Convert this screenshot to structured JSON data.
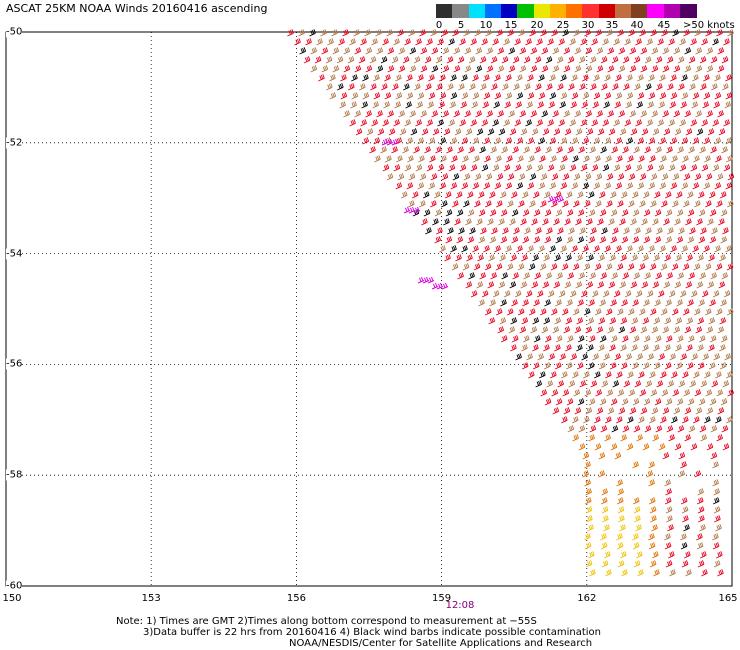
{
  "title": "ASCAT 25KM NOAA Winds 20160416 ascending",
  "legend": {
    "labels": [
      "0",
      "5",
      "10",
      "15",
      "20",
      "25",
      "30",
      "35",
      "40",
      "45",
      ">50 knots"
    ],
    "colors": [
      "#2e2e2e",
      "#888888",
      "#00e0ff",
      "#0070ff",
      "#0000c0",
      "#00c000",
      "#e8e800",
      "#ffb000",
      "#ff7000",
      "#ff3030",
      "#d00000",
      "#c07040",
      "#804020",
      "#ff00ff",
      "#b000b0",
      "#500060"
    ]
  },
  "map": {
    "lon_ticks": [
      "150",
      "153",
      "156",
      "159",
      "162",
      "165"
    ],
    "lon_values": [
      150,
      153,
      156,
      159,
      162,
      165
    ],
    "lat_ticks": [
      "-50",
      "-52",
      "-54",
      "-56",
      "-58",
      "-60"
    ],
    "lat_values": [
      -50,
      -52,
      -54,
      -56,
      -58,
      -60
    ],
    "time_label": "12:08",
    "barb_colors": {
      "red": "#e8001c",
      "brown": "#b07848",
      "dark": "#000000",
      "orange": "#e07000",
      "yellow": "#f0c000",
      "magenta": "#e000e0"
    }
  },
  "notes": {
    "line1": "Note: 1) Times are GMT 2)Times along bottom correspond to measurement at −55S",
    "line2": "3)Data buffer is 22 hrs from 20160416 4) Black wind barbs indicate possible contamination",
    "line3": "NOAA/NESDIS/Center for Satellite Applications and Research"
  }
}
